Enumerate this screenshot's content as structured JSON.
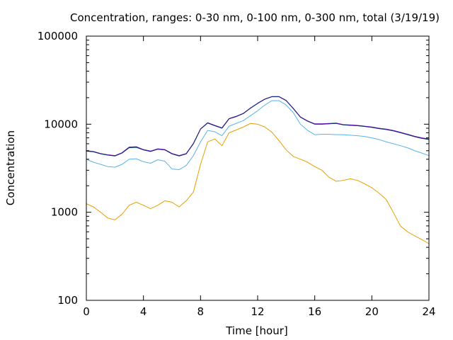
{
  "chart_data": {
    "type": "line",
    "title": "Concentration, ranges: 0-30 nm, 0-100 nm, 0-300 nm, total (3/19/19)",
    "xlabel": "Time [hour]",
    "ylabel": "Concentration",
    "xlim": [
      0,
      24
    ],
    "ylim": [
      100,
      100000
    ],
    "y_scale": "log",
    "x_ticks": [
      0,
      4,
      8,
      12,
      16,
      20,
      24
    ],
    "x_tick_labels": [
      "0",
      "4",
      "8",
      "12",
      "16",
      "20",
      "24"
    ],
    "y_ticks": [
      100,
      1000,
      10000,
      100000
    ],
    "y_tick_labels": [
      "100",
      "1000",
      "10000",
      "100000"
    ],
    "grid": false,
    "legend": "none",
    "x": [
      0,
      0.5,
      1,
      1.5,
      2,
      2.5,
      3,
      3.5,
      4,
      4.5,
      5,
      5.5,
      6,
      6.5,
      7,
      7.5,
      8,
      8.5,
      9,
      9.5,
      10,
      10.5,
      11,
      11.5,
      12,
      12.5,
      13,
      13.5,
      14,
      14.5,
      15,
      15.5,
      16,
      16.5,
      17,
      17.5,
      18,
      18.5,
      19,
      19.5,
      20,
      20.5,
      21,
      21.5,
      22,
      22.5,
      23,
      23.5,
      24
    ],
    "series": [
      {
        "color": "#e69f00",
        "values": [
          1250,
          1150,
          1000,
          860,
          820,
          950,
          1200,
          1300,
          1200,
          1100,
          1200,
          1350,
          1300,
          1150,
          1350,
          1700,
          3500,
          6300,
          6800,
          5700,
          8000,
          8600,
          9300,
          10200,
          10000,
          9300,
          8100,
          6500,
          5100,
          4300,
          4000,
          3700,
          3300,
          3000,
          2500,
          2250,
          2300,
          2400,
          2300,
          2100,
          1900,
          1650,
          1400,
          1000,
          700,
          600,
          540,
          490,
          440
        ]
      },
      {
        "color": "#56b4e9",
        "values": [
          4000,
          3700,
          3500,
          3300,
          3250,
          3500,
          4000,
          4050,
          3750,
          3600,
          3950,
          3800,
          3100,
          3050,
          3400,
          4400,
          6300,
          8500,
          8200,
          7400,
          9500,
          10200,
          11000,
          12500,
          14200,
          16500,
          18500,
          18500,
          16500,
          13500,
          10000,
          8500,
          7600,
          7700,
          7700,
          7600,
          7600,
          7500,
          7400,
          7250,
          7000,
          6700,
          6300,
          6000,
          5700,
          5400,
          5000,
          4700,
          4400
        ]
      },
      {
        "color": "#009e73",
        "values": [
          4950,
          4850,
          4600,
          4450,
          4350,
          4700,
          5400,
          5450,
          5100,
          4900,
          5200,
          5100,
          4600,
          4350,
          4600,
          6000,
          8800,
          10300,
          9600,
          9000,
          11500,
          12200,
          13200,
          15200,
          17200,
          19200,
          20500,
          20500,
          18500,
          15000,
          12000,
          10800,
          10000,
          10000,
          10100,
          10200,
          9800,
          9700,
          9600,
          9400,
          9200,
          8900,
          8700,
          8400,
          8000,
          7600,
          7200,
          6900,
          6700
        ]
      },
      {
        "color": "#9400d3",
        "values": [
          5000,
          4900,
          4650,
          4500,
          4400,
          4750,
          5500,
          5550,
          5150,
          4950,
          5250,
          5150,
          4650,
          4400,
          4650,
          6050,
          8850,
          10400,
          9700,
          9100,
          11600,
          12300,
          13300,
          15300,
          17300,
          19300,
          20600,
          20600,
          18600,
          15100,
          12100,
          10900,
          10100,
          10100,
          10200,
          10300,
          9900,
          9800,
          9700,
          9500,
          9300,
          9000,
          8800,
          8500,
          8100,
          7700,
          7300,
          7000,
          6800
        ]
      },
      {
        "color": "#1a237e",
        "values": [
          4950,
          4860,
          4620,
          4460,
          4360,
          4710,
          5420,
          5480,
          5110,
          4910,
          5210,
          5110,
          4610,
          4360,
          4610,
          6020,
          8820,
          10320,
          9620,
          9020,
          11520,
          12220,
          13220,
          15220,
          17220,
          19220,
          20520,
          20520,
          18520,
          15020,
          12020,
          10820,
          10020,
          10020,
          10120,
          10220,
          9820,
          9720,
          9620,
          9420,
          9220,
          8920,
          8720,
          8420,
          8020,
          7620,
          7220,
          6920,
          6720
        ]
      }
    ]
  }
}
